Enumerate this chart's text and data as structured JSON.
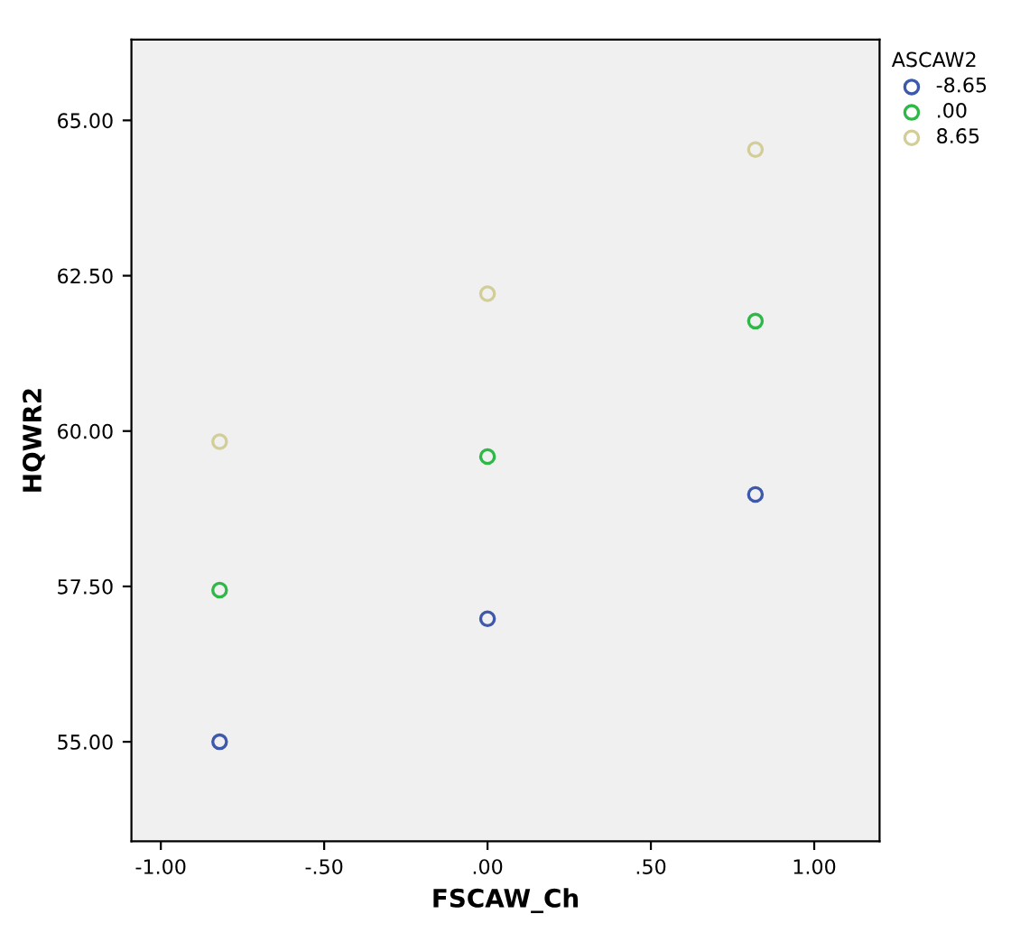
{
  "chart_data": {
    "type": "scatter",
    "xlabel": "FSCAW_Ch",
    "ylabel": "HQWR2",
    "legend_title": "ASCAW2",
    "legend": "right",
    "marker": "circle",
    "grid": false,
    "x": [
      -0.82,
      0,
      0.82
    ],
    "series": [
      {
        "name": "-8.65",
        "color": "#3e58ac",
        "values": [
          55.0,
          56.98,
          58.98
        ]
      },
      {
        "name": ".00",
        "color": "#2eb848",
        "values": [
          57.44,
          59.59,
          61.77
        ]
      },
      {
        "name": "8.65",
        "color": "#d3ce97",
        "values": [
          59.83,
          62.21,
          64.53
        ]
      }
    ],
    "xlim": [
      -1.09,
      1.2
    ],
    "ylim": [
      53.4,
      66.3
    ],
    "xticks": [
      {
        "value": -1,
        "label": "-1.00"
      },
      {
        "value": -0.5,
        "label": "-.50"
      },
      {
        "value": 0,
        "label": ".00"
      },
      {
        "value": 0.5,
        "label": ".50"
      },
      {
        "value": 1,
        "label": "1.00"
      }
    ],
    "yticks": [
      {
        "value": 55,
        "label": "55.00"
      },
      {
        "value": 57.5,
        "label": "57.50"
      },
      {
        "value": 60,
        "label": "60.00"
      },
      {
        "value": 62.5,
        "label": "62.50"
      },
      {
        "value": 65,
        "label": "65.00"
      }
    ]
  }
}
